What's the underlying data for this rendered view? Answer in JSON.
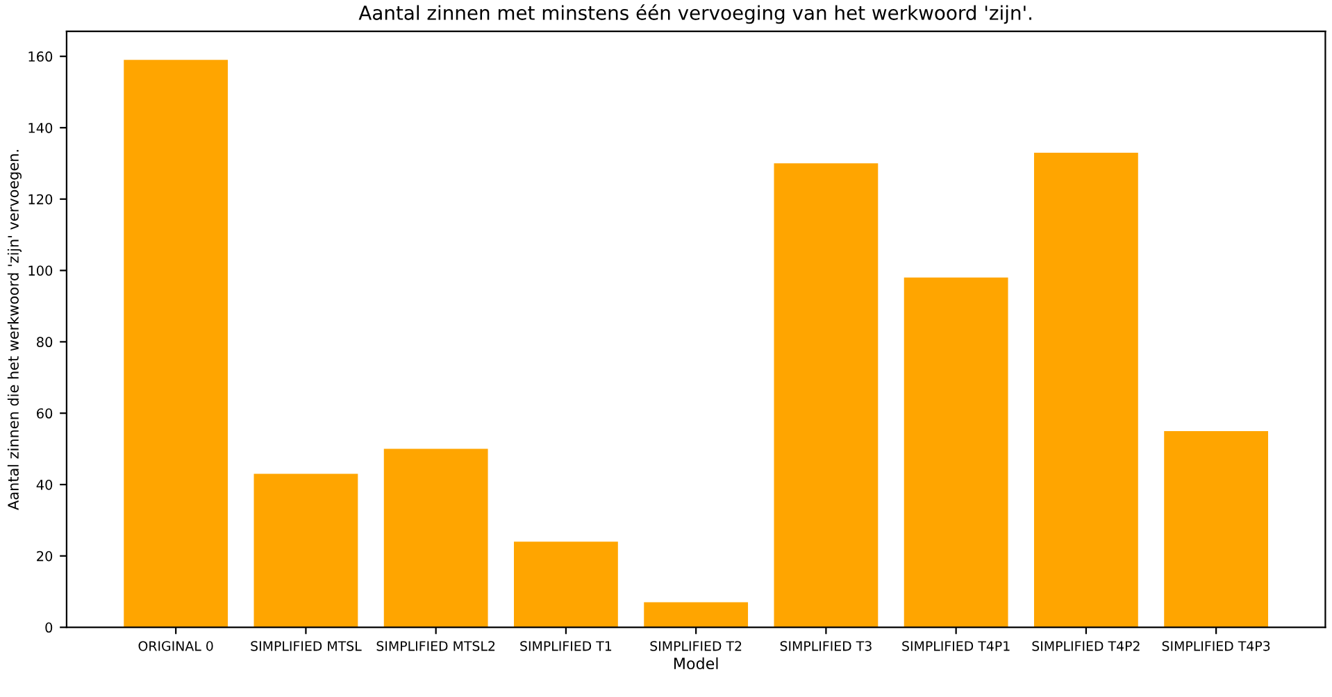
{
  "chart_data": {
    "type": "bar",
    "title": "Aantal zinnen met minstens één vervoeging van het werkwoord 'zijn'.",
    "xlabel": "Model",
    "ylabel": "Aantal zinnen die het werkwoord 'zijn' vervoegen.",
    "categories": [
      "ORIGINAL 0",
      "SIMPLIFIED MTSL",
      "SIMPLIFIED MTSL2",
      "SIMPLIFIED T1",
      "SIMPLIFIED T2",
      "SIMPLIFIED T3",
      "SIMPLIFIED T4P1",
      "SIMPLIFIED T4P2",
      "SIMPLIFIED T4P3"
    ],
    "values": [
      159,
      43,
      50,
      24,
      7,
      130,
      98,
      133,
      55
    ],
    "color": "#ffa500",
    "ylim": [
      0,
      167
    ],
    "yticks": [
      0,
      20,
      40,
      60,
      80,
      100,
      120,
      140,
      160
    ],
    "grid": false,
    "legend": false
  }
}
